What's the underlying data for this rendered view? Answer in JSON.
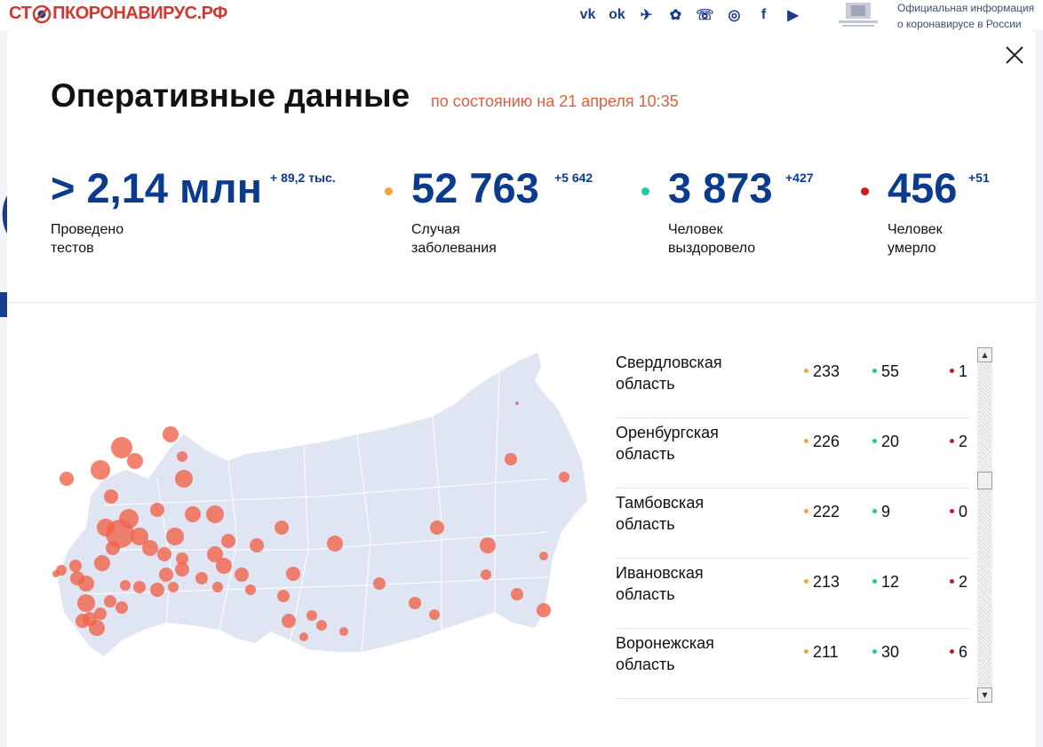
{
  "header": {
    "logo_start": "СТ",
    "logo_end": "ПКОРОНАВИРУС.РФ",
    "socials": [
      {
        "icon": "vk-icon",
        "glyph": "vk"
      },
      {
        "icon": "odnoklassniki-icon",
        "glyph": "ok"
      },
      {
        "icon": "telegram-icon",
        "glyph": "✈"
      },
      {
        "icon": "yandex-zen-icon",
        "glyph": "✿"
      },
      {
        "icon": "viber-icon",
        "glyph": "☏"
      },
      {
        "icon": "instagram-icon",
        "glyph": "◎"
      },
      {
        "icon": "facebook-icon",
        "glyph": "f"
      },
      {
        "icon": "youtube-icon",
        "glyph": "▶"
      }
    ],
    "gov_text": "Официальная информация о коронавирусе в России"
  },
  "modal": {
    "title": "Оперативные данные",
    "subtitle": "по состоянию на 21 апреля 10:35",
    "stats": [
      {
        "value": "> 2,14 млн",
        "delta": "+ 89,2 тыс.",
        "label": "Проведено\nтестов",
        "dot_color": null
      },
      {
        "value": "52 763",
        "delta": "+5 642",
        "label": "Случая\nзаболевания",
        "dot_color": "#f5a33a"
      },
      {
        "value": "3 873",
        "delta": "+427",
        "label": "Человек\nвыздоровело",
        "dot_color": "#1dc9a4"
      },
      {
        "value": "456",
        "delta": "+51",
        "label": "Человек\nумерло",
        "dot_color": "#cf1a1a"
      }
    ],
    "regions": [
      {
        "name": "Свердловская\nобласть",
        "cases": "233",
        "recovered": "55",
        "deaths": "1"
      },
      {
        "name": "Оренбургская\nобласть",
        "cases": "226",
        "recovered": "20",
        "deaths": "2"
      },
      {
        "name": "Тамбовская\nобласть",
        "cases": "222",
        "recovered": "9",
        "deaths": "0"
      },
      {
        "name": "Ивановская\nобласть",
        "cases": "213",
        "recovered": "12",
        "deaths": "2"
      },
      {
        "name": "Воронежская\nобласть",
        "cases": "211",
        "recovered": "30",
        "deaths": "6"
      }
    ]
  },
  "colors": {
    "brand_blue": "#0b3b8f",
    "accent_orange": "#e65b3c",
    "cases": "#f5a33a",
    "recovered": "#1dc9a4",
    "deaths": "#cf1a1a",
    "map_fill": "#dfe5f3",
    "marker": "#f0634a"
  }
}
